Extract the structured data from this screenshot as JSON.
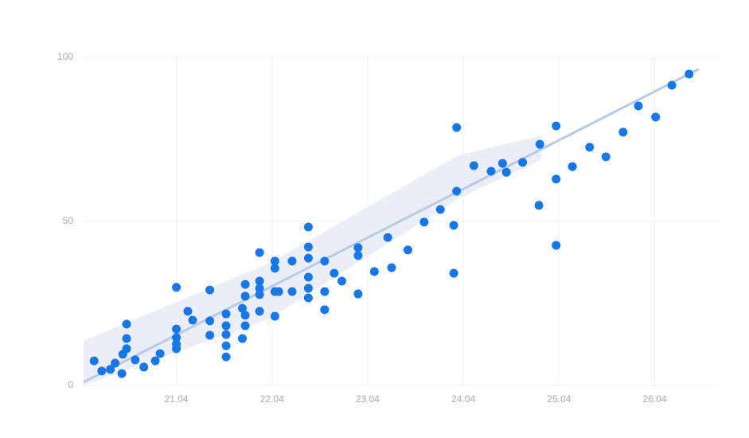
{
  "chart_data": {
    "type": "scatter",
    "x": [
      20.14,
      20.22,
      20.31,
      20.36,
      20.43,
      20.44,
      20.48,
      20.48,
      20.48,
      20.57,
      20.66,
      20.78,
      20.83,
      21.0,
      21.0,
      21.0,
      21.0,
      21.0,
      21.12,
      21.17,
      21.35,
      21.35,
      21.35,
      21.52,
      21.52,
      21.52,
      21.52,
      21.52,
      21.69,
      21.69,
      21.72,
      21.72,
      21.72,
      21.72,
      21.87,
      21.87,
      21.87,
      21.87,
      21.87,
      22.03,
      22.03,
      22.03,
      22.03,
      22.07,
      22.21,
      22.21,
      22.38,
      22.38,
      22.38,
      22.38,
      22.38,
      22.38,
      22.55,
      22.55,
      22.55,
      22.65,
      22.73,
      22.9,
      22.9,
      22.9,
      23.07,
      23.21,
      23.25,
      23.42,
      23.59,
      23.76,
      23.9,
      23.9,
      23.93,
      23.93,
      24.11,
      24.29,
      24.41,
      24.45,
      24.62,
      24.79,
      24.8,
      24.97,
      24.97,
      24.97,
      25.14,
      25.32,
      25.49,
      25.67,
      25.83,
      26.01,
      26.18,
      26.36
    ],
    "values": [
      7.5,
      4.4,
      4.9,
      6.8,
      3.6,
      9.5,
      11.2,
      14.3,
      18.7,
      7.8,
      5.6,
      7.5,
      9.7,
      29.9,
      17.2,
      14.6,
      12.6,
      11.2,
      22.6,
      19.9,
      29.1,
      19.7,
      15.3,
      21.8,
      18.2,
      15.5,
      12.1,
      8.7,
      23.5,
      14.3,
      30.8,
      27.2,
      21.4,
      18.2,
      40.5,
      31.8,
      29.6,
      27.7,
      22.6,
      37.9,
      35.7,
      28.6,
      21.1,
      28.6,
      37.9,
      28.6,
      48.3,
      42.2,
      38.8,
      33.0,
      29.6,
      26.7,
      37.9,
      28.6,
      23.1,
      34.2,
      31.8,
      42.0,
      39.6,
      27.9,
      34.7,
      45.1,
      35.9,
      41.3,
      49.8,
      53.6,
      48.8,
      34.2,
      78.6,
      59.2,
      67.0,
      65.3,
      67.7,
      65.0,
      68.0,
      54.9,
      73.5,
      79.1,
      62.9,
      42.7,
      66.7,
      72.6,
      69.7,
      77.2,
      85.2,
      81.8,
      91.5,
      94.9
    ],
    "color": "#1677e8",
    "trend": {
      "x": [
        20.03,
        26.46
      ],
      "values": [
        1,
        96.4
      ],
      "color": "#b9c9e2"
    },
    "band": {
      "x": [
        20.03,
        21.98,
        23.94,
        24.82
      ],
      "upper": [
        13.6,
        37.4,
        70.1,
        76.2
      ],
      "lower": [
        0,
        20.4,
        56.8,
        68.9
      ],
      "color": "#e9eef8"
    },
    "xlim": [
      20.03,
      26.67
    ],
    "xticks": [
      {
        "value": 21,
        "label": "21.04"
      },
      {
        "value": 22,
        "label": "22.04"
      },
      {
        "value": 23,
        "label": "23.04"
      },
      {
        "value": 24,
        "label": "24.04"
      },
      {
        "value": 25,
        "label": "25.04"
      },
      {
        "value": 26,
        "label": "26.04"
      }
    ],
    "ylim": [
      0,
      100
    ],
    "yticks": [
      0,
      50,
      100
    ],
    "grid": true
  }
}
